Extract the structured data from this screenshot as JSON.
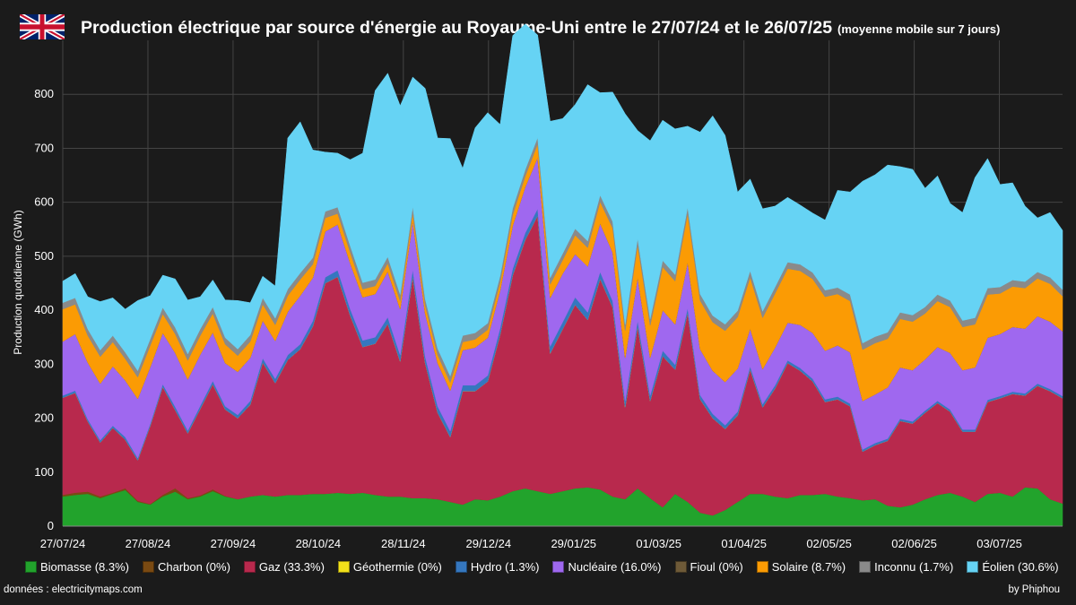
{
  "header": {
    "title": "Production électrique par source d'énergie au Royaume-Uni entre le 27/07/24 et le 26/07/25",
    "subtitle": "(moyenne mobile sur 7 jours)"
  },
  "footer": {
    "source": "données : electricitymaps.com",
    "author": "by Phiphou"
  },
  "chart_data": {
    "type": "area",
    "stacked": true,
    "ylabel": "Production quotidienne (GWh)",
    "xlabel": "",
    "ylim": [
      0,
      900
    ],
    "yticks": [
      0,
      100,
      200,
      300,
      400,
      500,
      600,
      700,
      800
    ],
    "xticks": [
      "27/07/24",
      "27/08/24",
      "27/09/24",
      "28/10/24",
      "28/11/24",
      "29/12/24",
      "29/01/25",
      "01/03/25",
      "01/04/25",
      "02/05/25",
      "02/06/25",
      "03/07/25"
    ],
    "grid": true,
    "legend_position": "bottom",
    "x_start": "27/07/24",
    "x_end": "26/07/25",
    "x_step_days": 5,
    "series": [
      {
        "name": "Biomasse (8.3%)",
        "color": "#22a32c",
        "values": [
          55,
          58,
          60,
          52,
          60,
          67,
          45,
          40,
          55,
          64,
          50,
          55,
          65,
          55,
          50,
          55,
          58,
          55,
          58,
          58,
          60,
          60,
          62,
          60,
          62,
          58,
          55,
          55,
          52,
          52,
          50,
          45,
          40,
          50,
          48,
          55,
          65,
          70,
          65,
          60,
          65,
          70,
          72,
          68,
          55,
          50,
          70,
          52,
          35,
          60,
          45,
          25,
          20,
          30,
          45,
          60,
          60,
          55,
          52,
          58,
          58,
          60,
          55,
          52,
          48,
          50,
          38,
          35,
          40,
          50,
          58,
          62,
          55,
          45,
          60,
          62,
          55,
          72,
          70,
          50,
          42
        ]
      },
      {
        "name": "Charbon (0%)",
        "color": "#7a4a12",
        "values": [
          3,
          4,
          4,
          3,
          2,
          3,
          2,
          1,
          3,
          6,
          2,
          2,
          3,
          1,
          0,
          0,
          0,
          0,
          0,
          0,
          0,
          0,
          0,
          0,
          0,
          0,
          0,
          0,
          0,
          0,
          0,
          0,
          0,
          0,
          0,
          0,
          0,
          0,
          0,
          0,
          0,
          0,
          0,
          0,
          0,
          0,
          0,
          0,
          0,
          0,
          0,
          0,
          0,
          0,
          0,
          0,
          0,
          0,
          0,
          0,
          0,
          0,
          0,
          0,
          0,
          0,
          0,
          0,
          0,
          0,
          0,
          0,
          0,
          0,
          0,
          0,
          0,
          0,
          0,
          0,
          0
        ]
      },
      {
        "name": "Gaz (33.3%)",
        "color": "#b8294d",
        "values": [
          180,
          185,
          130,
          100,
          120,
          90,
          75,
          145,
          200,
          145,
          120,
          160,
          195,
          160,
          150,
          170,
          245,
          210,
          250,
          270,
          310,
          390,
          400,
          330,
          270,
          280,
          320,
          250,
          410,
          250,
          160,
          120,
          210,
          200,
          220,
          300,
          400,
          460,
          510,
          260,
          300,
          340,
          310,
          390,
          350,
          170,
          300,
          180,
          280,
          230,
          350,
          210,
          180,
          150,
          160,
          230,
          160,
          200,
          250,
          230,
          210,
          170,
          180,
          170,
          90,
          100,
          120,
          160,
          150,
          160,
          170,
          150,
          120,
          130,
          170,
          175,
          190,
          170,
          190,
          200,
          195
        ]
      },
      {
        "name": "Géothermie (0%)",
        "color": "#f2e11a",
        "values": [
          0,
          0,
          0,
          0,
          0,
          0,
          0,
          0,
          0,
          0,
          0,
          0,
          0,
          0,
          0,
          0,
          0,
          0,
          0,
          0,
          0,
          0,
          0,
          0,
          0,
          0,
          0,
          0,
          0,
          0,
          0,
          0,
          0,
          0,
          0,
          0,
          0,
          0,
          0,
          0,
          0,
          0,
          0,
          0,
          0,
          0,
          0,
          0,
          0,
          0,
          0,
          0,
          0,
          0,
          0,
          0,
          0,
          0,
          0,
          0,
          0,
          0,
          0,
          0,
          0,
          0,
          0,
          0,
          0,
          0,
          0,
          0,
          0,
          0,
          0,
          0,
          0,
          0,
          0,
          0,
          0
        ]
      },
      {
        "name": "Hydro (1.3%)",
        "color": "#3577bf",
        "values": [
          4,
          4,
          4,
          4,
          4,
          5,
          4,
          4,
          5,
          6,
          5,
          6,
          6,
          6,
          6,
          7,
          8,
          8,
          9,
          9,
          10,
          11,
          12,
          12,
          12,
          12,
          12,
          12,
          13,
          12,
          12,
          11,
          11,
          11,
          11,
          12,
          12,
          13,
          13,
          13,
          13,
          14,
          14,
          13,
          12,
          12,
          11,
          10,
          10,
          9,
          9,
          8,
          8,
          7,
          7,
          6,
          6,
          6,
          5,
          5,
          5,
          5,
          5,
          5,
          4,
          4,
          4,
          4,
          4,
          4,
          4,
          4,
          4,
          4,
          4,
          4,
          4,
          4,
          4,
          4,
          4
        ]
      },
      {
        "name": "Nucléaire (16.0%)",
        "color": "#9f68ef",
        "values": [
          100,
          105,
          105,
          105,
          110,
          105,
          110,
          105,
          95,
          100,
          95,
          95,
          90,
          80,
          80,
          80,
          70,
          70,
          80,
          90,
          80,
          85,
          85,
          85,
          80,
          80,
          85,
          85,
          90,
          80,
          80,
          75,
          65,
          70,
          70,
          70,
          80,
          85,
          95,
          90,
          90,
          80,
          85,
          90,
          90,
          80,
          80,
          70,
          75,
          75,
          85,
          85,
          80,
          80,
          80,
          70,
          65,
          70,
          70,
          80,
          85,
          90,
          95,
          95,
          90,
          90,
          95,
          95,
          95,
          95,
          100,
          105,
          110,
          115,
          115,
          115,
          120,
          120,
          125,
          125,
          120
        ]
      },
      {
        "name": "Fioul (0%)",
        "color": "#6e5a38",
        "values": [
          0,
          0,
          0,
          0,
          0,
          0,
          0,
          0,
          0,
          0,
          0,
          0,
          0,
          0,
          0,
          0,
          0,
          0,
          0,
          0,
          0,
          0,
          0,
          0,
          0,
          0,
          0,
          0,
          0,
          0,
          0,
          0,
          0,
          0,
          0,
          0,
          0,
          0,
          0,
          0,
          0,
          0,
          0,
          0,
          0,
          0,
          0,
          0,
          0,
          0,
          0,
          0,
          0,
          0,
          0,
          0,
          0,
          0,
          0,
          0,
          0,
          0,
          0,
          0,
          0,
          0,
          0,
          0,
          0,
          0,
          0,
          0,
          0,
          0,
          0,
          0,
          0,
          0,
          0,
          0,
          0
        ]
      },
      {
        "name": "Solaire (8.7%)",
        "color": "#fb9b04",
        "values": [
          60,
          55,
          50,
          50,
          45,
          40,
          40,
          40,
          35,
          35,
          35,
          35,
          35,
          35,
          30,
          30,
          30,
          30,
          30,
          30,
          25,
          25,
          20,
          20,
          15,
          15,
          15,
          15,
          15,
          15,
          15,
          15,
          15,
          15,
          15,
          15,
          20,
          20,
          25,
          25,
          25,
          35,
          35,
          40,
          45,
          50,
          60,
          60,
          80,
          80,
          90,
          90,
          90,
          95,
          95,
          95,
          95,
          100,
          100,
          100,
          100,
          100,
          95,
          95,
          95,
          95,
          90,
          90,
          90,
          85,
          85,
          85,
          80,
          80,
          80,
          75,
          75,
          75,
          70,
          70,
          65
        ]
      },
      {
        "name": "Inconnu (1.7%)",
        "color": "#8a8a8a",
        "values": [
          12,
          12,
          12,
          12,
          12,
          12,
          12,
          12,
          12,
          12,
          12,
          12,
          12,
          12,
          12,
          12,
          12,
          12,
          12,
          12,
          12,
          12,
          12,
          12,
          12,
          12,
          12,
          12,
          12,
          12,
          12,
          12,
          12,
          12,
          12,
          12,
          12,
          12,
          12,
          12,
          12,
          12,
          12,
          12,
          12,
          12,
          12,
          12,
          12,
          12,
          12,
          12,
          12,
          12,
          12,
          12,
          12,
          12,
          12,
          12,
          12,
          12,
          12,
          12,
          12,
          12,
          12,
          12,
          12,
          12,
          12,
          12,
          12,
          12,
          12,
          12,
          12,
          12,
          12,
          12,
          12
        ]
      },
      {
        "name": "Éolien (30.6%)",
        "color": "#66d3f4",
        "values": [
          40,
          45,
          60,
          90,
          70,
          80,
          130,
          80,
          60,
          90,
          100,
          60,
          50,
          70,
          90,
          60,
          40,
          60,
          280,
          280,
          200,
          110,
          100,
          160,
          240,
          350,
          340,
          350,
          240,
          390,
          390,
          440,
          310,
          380,
          390,
          280,
          320,
          270,
          190,
          290,
          250,
          230,
          290,
          190,
          240,
          390,
          200,
          330,
          260,
          270,
          150,
          300,
          370,
          350,
          220,
          170,
          190,
          150,
          120,
          110,
          110,
          130,
          180,
          190,
          300,
          300,
          310,
          270,
          270,
          220,
          220,
          180,
          200,
          260,
          240,
          190,
          180,
          140,
          100,
          120,
          110
        ]
      }
    ]
  }
}
